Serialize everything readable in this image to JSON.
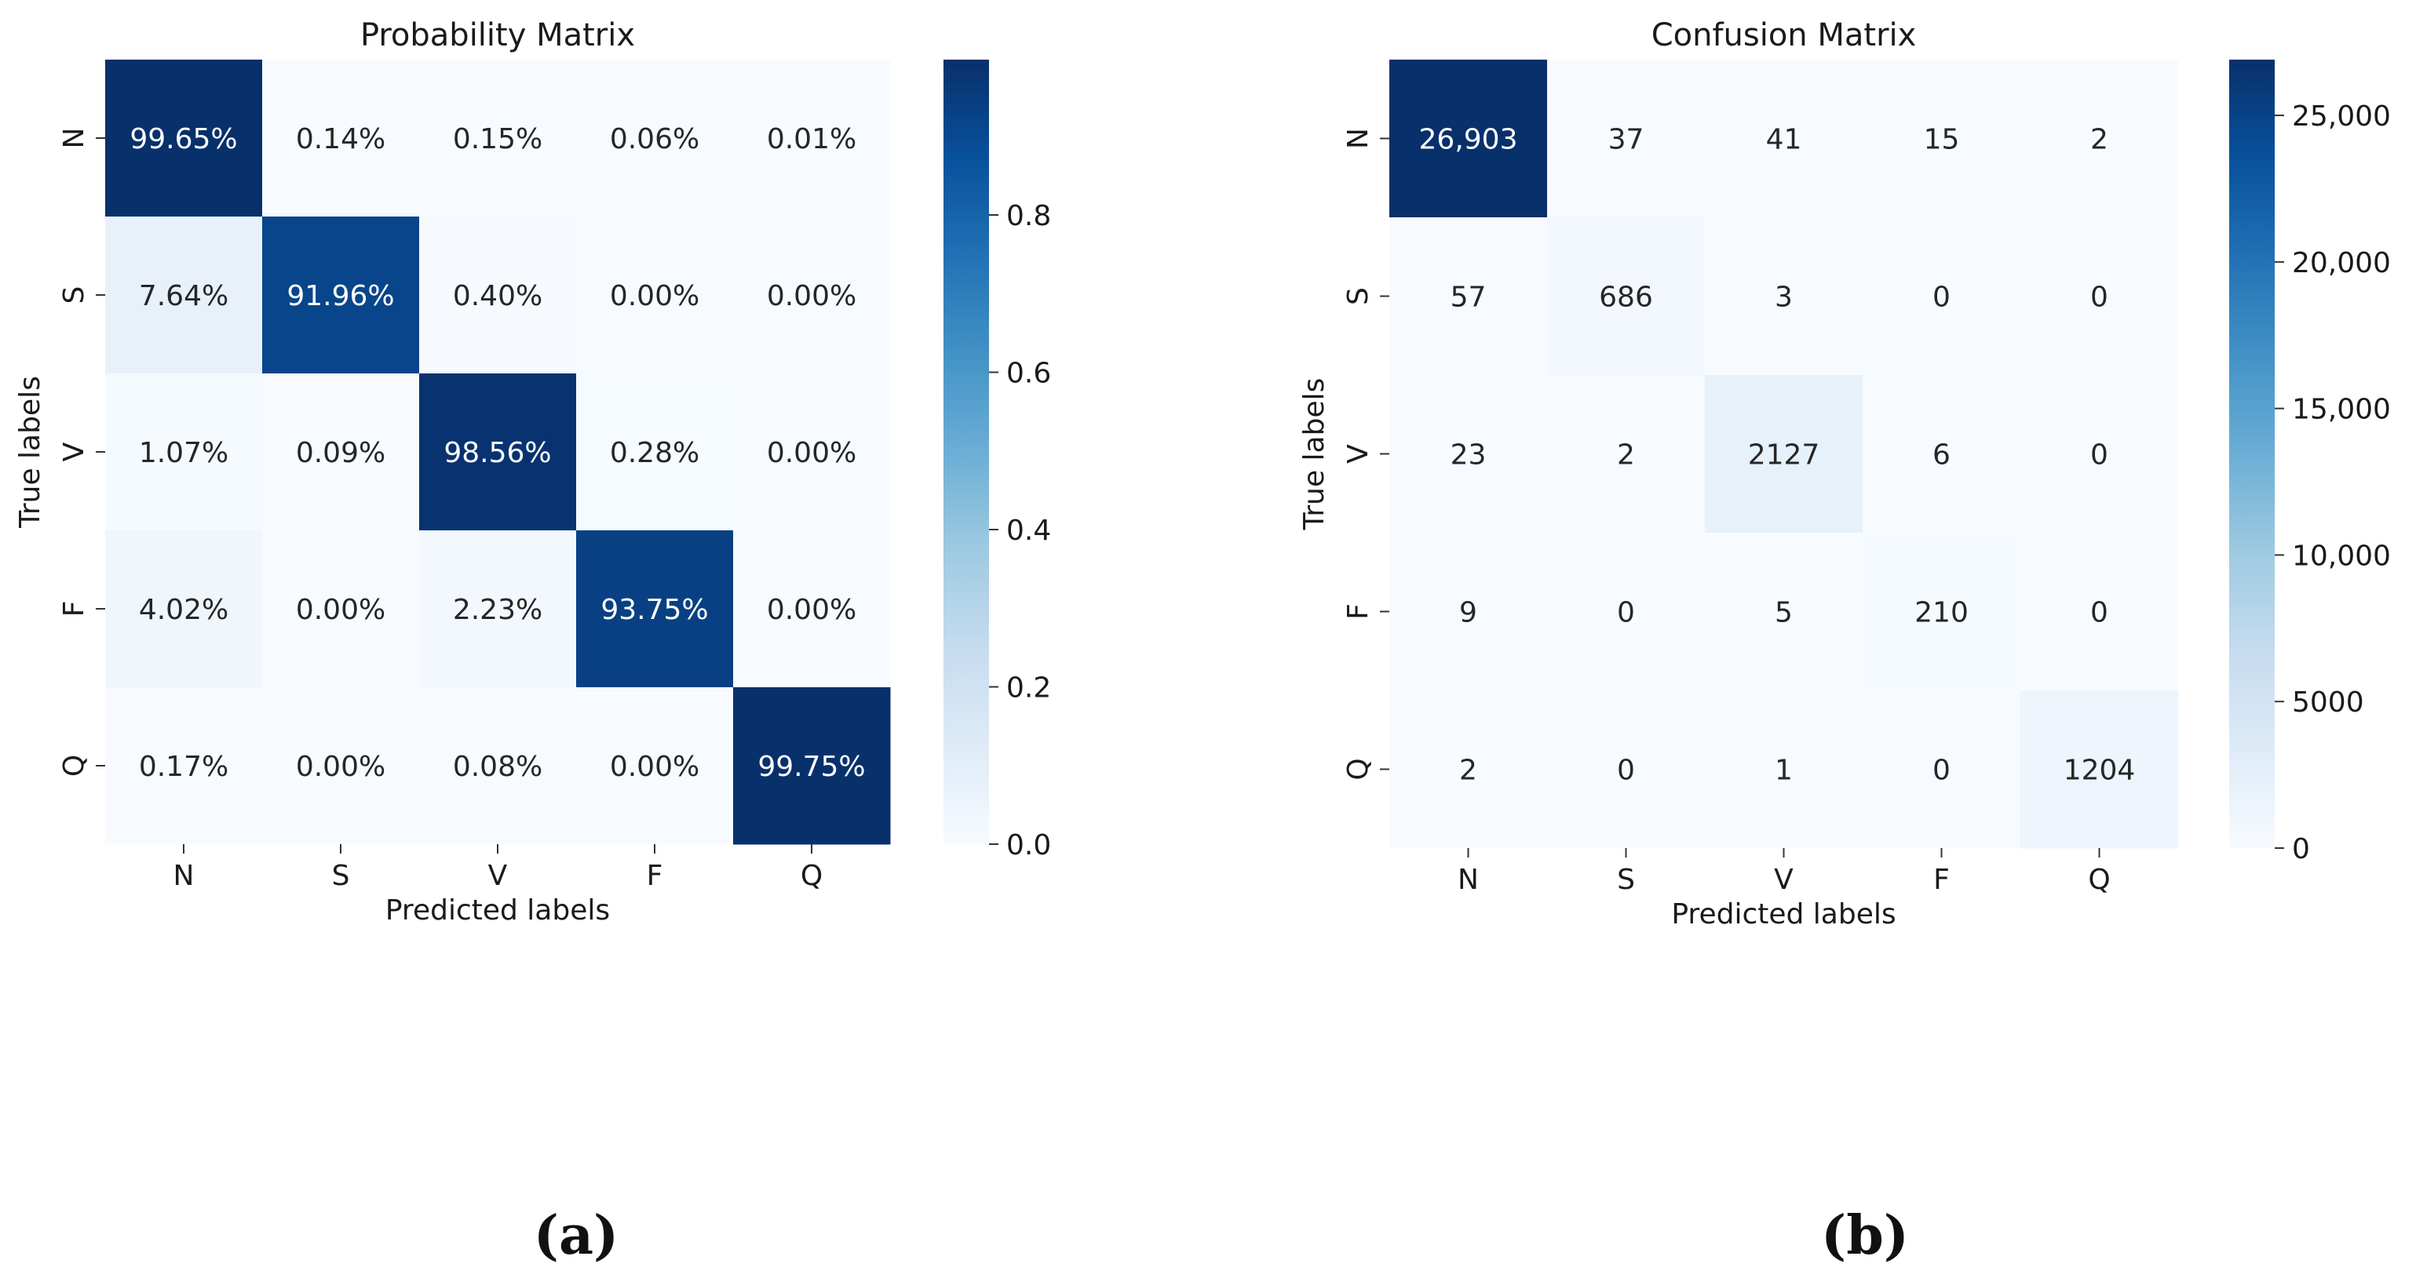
{
  "chart_data": [
    {
      "type": "heatmap",
      "title": "Probability Matrix",
      "xlabel": "Predicted labels",
      "ylabel": "True labels",
      "x_categories": [
        "N",
        "S",
        "V",
        "F",
        "Q"
      ],
      "y_categories": [
        "N",
        "S",
        "V",
        "F",
        "Q"
      ],
      "values": [
        [
          0.9965,
          0.0014,
          0.0015,
          0.0006,
          0.0001
        ],
        [
          0.0764,
          0.9196,
          0.004,
          0.0,
          0.0
        ],
        [
          0.0107,
          0.0009,
          0.9856,
          0.0028,
          0.0
        ],
        [
          0.0402,
          0.0,
          0.0223,
          0.9375,
          0.0
        ],
        [
          0.0017,
          0.0,
          0.0008,
          0.0,
          0.9975
        ]
      ],
      "cell_labels": [
        [
          "99.65%",
          "0.14%",
          "0.15%",
          "0.06%",
          "0.01%"
        ],
        [
          "7.64%",
          "91.96%",
          "0.40%",
          "0.00%",
          "0.00%"
        ],
        [
          "1.07%",
          "0.09%",
          "98.56%",
          "0.28%",
          "0.00%"
        ],
        [
          "4.02%",
          "0.00%",
          "2.23%",
          "93.75%",
          "0.00%"
        ],
        [
          "0.17%",
          "0.00%",
          "0.08%",
          "0.00%",
          "99.75%"
        ]
      ],
      "colorbar": {
        "vmin": 0,
        "vmax": 0.9975,
        "ticks": [
          0.0,
          0.2,
          0.4,
          0.6,
          0.8
        ],
        "tick_labels": [
          "0.0",
          "0.2",
          "0.4",
          "0.6",
          "0.8"
        ]
      },
      "colormap": "Blues",
      "panel_label": "(a)"
    },
    {
      "type": "heatmap",
      "title": "Confusion Matrix",
      "xlabel": "Predicted labels",
      "ylabel": "True labels",
      "x_categories": [
        "N",
        "S",
        "V",
        "F",
        "Q"
      ],
      "y_categories": [
        "N",
        "S",
        "V",
        "F",
        "Q"
      ],
      "values": [
        [
          26903,
          37,
          41,
          15,
          2
        ],
        [
          57,
          686,
          3,
          0,
          0
        ],
        [
          23,
          2,
          2127,
          6,
          0
        ],
        [
          9,
          0,
          5,
          210,
          0
        ],
        [
          2,
          0,
          1,
          0,
          1204
        ]
      ],
      "cell_labels": [
        [
          "26,903",
          "37",
          "41",
          "15",
          "2"
        ],
        [
          "57",
          "686",
          "3",
          "0",
          "0"
        ],
        [
          "23",
          "2",
          "2127",
          "6",
          "0"
        ],
        [
          "9",
          "0",
          "5",
          "210",
          "0"
        ],
        [
          "2",
          "0",
          "1",
          "0",
          "1204"
        ]
      ],
      "colorbar": {
        "vmin": 0,
        "vmax": 26903,
        "ticks": [
          0,
          5000,
          10000,
          15000,
          20000,
          25000
        ],
        "tick_labels": [
          "0",
          "5000",
          "10,000",
          "15,000",
          "20,000",
          "25,000"
        ]
      },
      "colormap": "Blues",
      "panel_label": "(b)"
    }
  ],
  "colormap_stops": [
    "#f7fbff",
    "#deebf7",
    "#c6dbef",
    "#9ecae1",
    "#6baed6",
    "#4292c6",
    "#2171b5",
    "#08519c",
    "#08306b"
  ]
}
